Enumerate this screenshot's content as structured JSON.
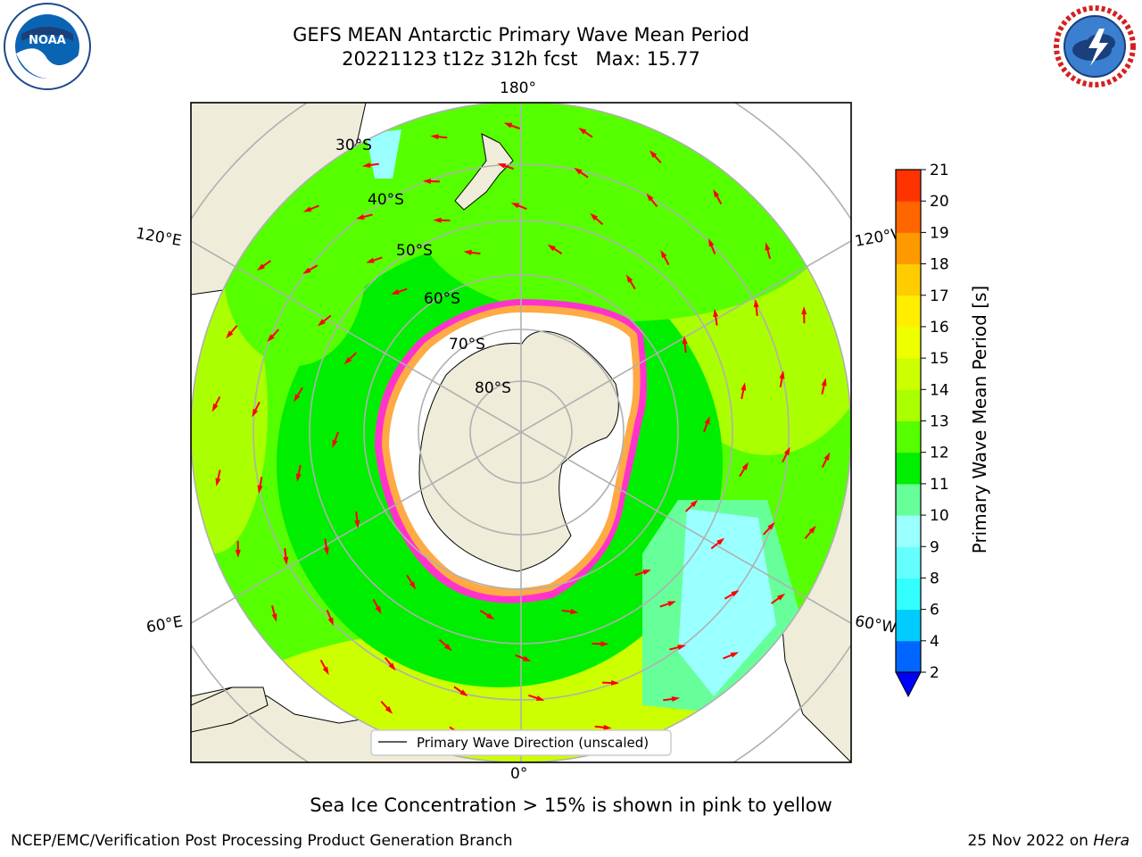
{
  "header": {
    "title_line1": "GEFS MEAN Antarctic Primary Wave Mean Period",
    "title_line2": "20221123 t12z 312h fcst   Max: 15.77"
  },
  "map": {
    "projection": "south-polar-stereographic",
    "longitude_labels": {
      "top": "180°",
      "bottom": "0°",
      "upper_left": "120°E",
      "lower_left": "60°E",
      "upper_right": "120°W",
      "lower_right": "60°W"
    },
    "latitude_labels": [
      "30°S",
      "40°S",
      "50°S",
      "60°S",
      "70°S",
      "80°S"
    ],
    "legend_label": "Primary Wave Direction (unscaled)",
    "arrow_color": "#ff0000",
    "land_color": "#efecda",
    "grid_color": "#b0b0b0"
  },
  "colorbar": {
    "label": "Primary Wave Mean Period [s]",
    "ticks": [
      "2",
      "4",
      "6",
      "8",
      "9",
      "10",
      "11",
      "12",
      "13",
      "14",
      "15",
      "16",
      "17",
      "18",
      "19",
      "20",
      "21"
    ],
    "colors": [
      "#0066ff",
      "#00ccff",
      "#33ffff",
      "#66ffff",
      "#99ffff",
      "#66ff99",
      "#00ee00",
      "#55ff00",
      "#aaff00",
      "#ccff00",
      "#eeff00",
      "#ffee00",
      "#ffcc00",
      "#ff9900",
      "#ff6600",
      "#ff3300",
      "#ff0000"
    ],
    "under_color": "#0000ff"
  },
  "caption": "Sea Ice Concentration > 15% is shown in pink to yellow",
  "footer": {
    "left": "NCEP/EMC/Verification Post Processing Product Generation Branch",
    "right_date": "25 Nov 2022 on ",
    "right_host": "Hera"
  },
  "logos": {
    "noaa": "NOAA",
    "nws": "NATIONAL WEATHER SERVICE"
  }
}
